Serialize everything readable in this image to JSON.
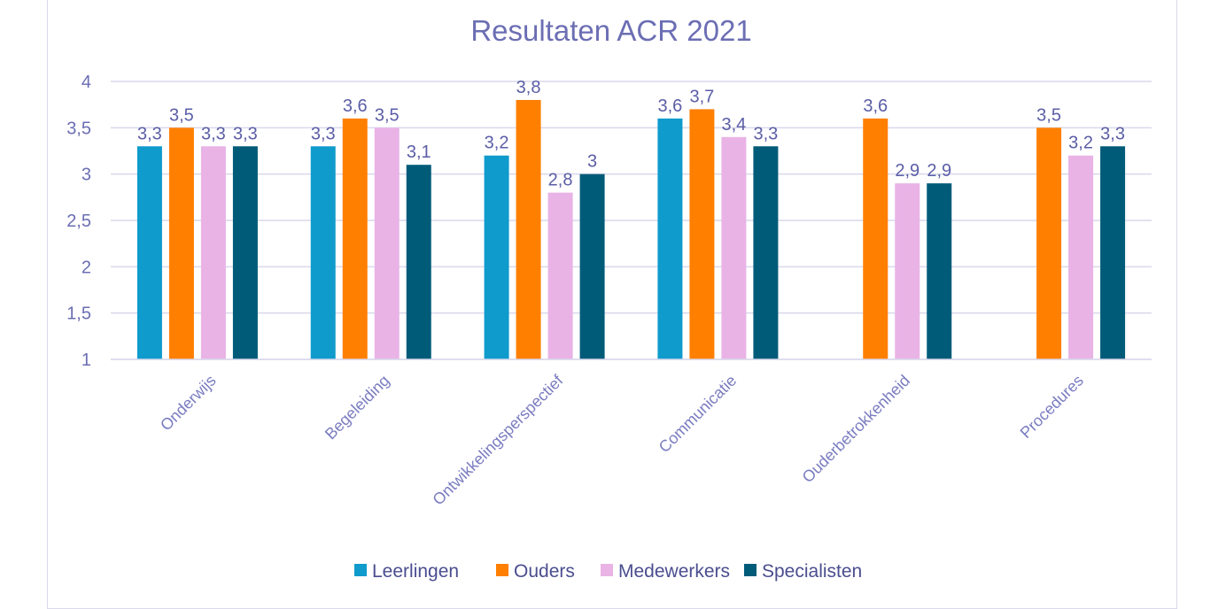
{
  "chart_data": {
    "type": "bar",
    "title": "Resultaten ACR 2021",
    "xlabel": "",
    "ylabel": "",
    "ylim": [
      1,
      4
    ],
    "yticks": [
      "1",
      "1,5",
      "2",
      "2,5",
      "3",
      "3,5",
      "4"
    ],
    "ytick_values": [
      1,
      1.5,
      2,
      2.5,
      3,
      3.5,
      4
    ],
    "grid": true,
    "legend_position": "bottom",
    "categories": [
      "Onderwijs",
      "Begeleiding",
      "Ontwikkelingsperspectief",
      "Communicatie",
      "Ouderbetrokkenheid",
      "Procedures"
    ],
    "series": [
      {
        "name": "Leerlingen",
        "color": "#0f9bcc",
        "values": [
          3.3,
          3.3,
          3.2,
          3.6,
          null,
          null
        ],
        "labels": [
          "3,3",
          "3,3",
          "3,2",
          "3,6",
          "",
          ""
        ]
      },
      {
        "name": "Ouders",
        "color": "#ff7f00",
        "values": [
          3.5,
          3.6,
          3.8,
          3.7,
          3.6,
          3.5
        ],
        "labels": [
          "3,5",
          "3,6",
          "3,8",
          "3,7",
          "3,6",
          "3,5"
        ]
      },
      {
        "name": "Medewerkers",
        "color": "#e9b3e6",
        "values": [
          3.3,
          3.5,
          2.8,
          3.4,
          2.9,
          3.2
        ],
        "labels": [
          "3,3",
          "3,5",
          "2,8",
          "3,4",
          "2,9",
          "3,2"
        ]
      },
      {
        "name": "Specialisten",
        "color": "#005b79",
        "values": [
          3.3,
          3.1,
          3.0,
          3.3,
          2.9,
          3.3
        ],
        "labels": [
          "3,3",
          "3,1",
          "3",
          "3,3",
          "2,9",
          "3,3"
        ]
      }
    ]
  }
}
